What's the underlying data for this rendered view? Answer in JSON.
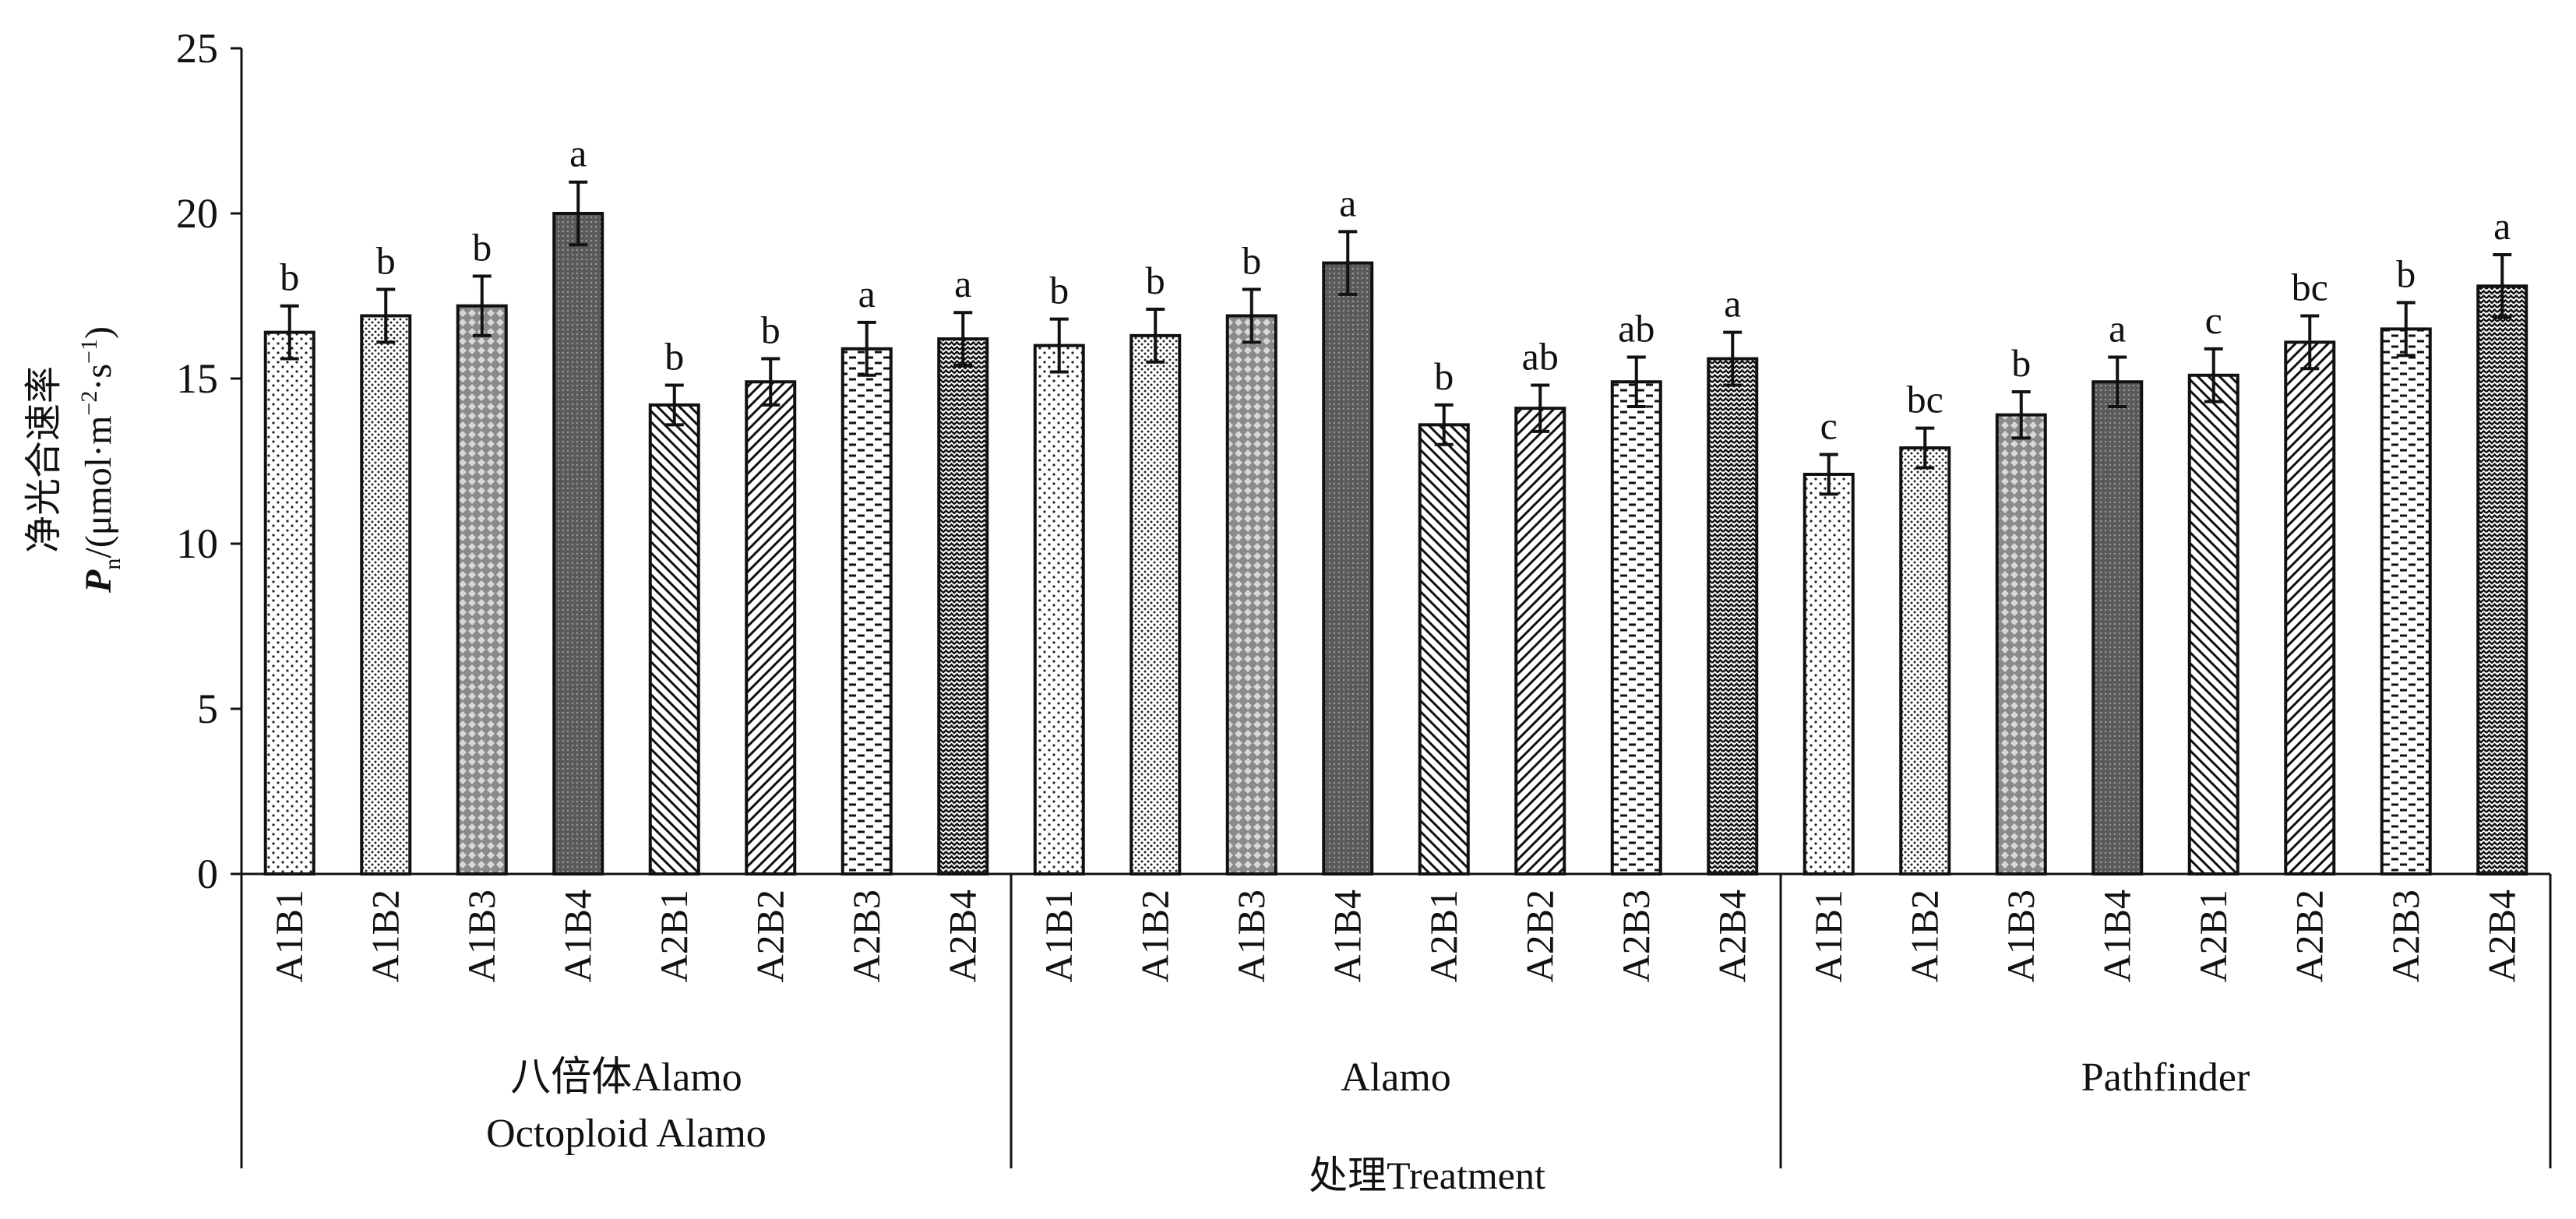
{
  "chart_data": {
    "type": "bar",
    "ylabel_cn": "净光合速率",
    "ylabel_en": "P",
    "ylabel_sub": "n",
    "ylabel_unit_pre": "/(μmol·m",
    "ylabel_exp1": "−2",
    "ylabel_unit_mid": "·s",
    "ylabel_exp2": "−1",
    "ylabel_unit_post": ")",
    "xlabel": "处理Treatment",
    "ylim": [
      0,
      25
    ],
    "yticks": [
      "0",
      "5",
      "10",
      "15",
      "20",
      "25"
    ],
    "groups": [
      {
        "label_line1": "八倍体Alamo",
        "label_line2": "Octoploid Alamo",
        "bars": [
          {
            "category": "A1B1",
            "value": 16.4,
            "error": 0.8,
            "letter": "b",
            "pattern": "dots-sparse"
          },
          {
            "category": "A1B2",
            "value": 16.9,
            "error": 0.8,
            "letter": "b",
            "pattern": "dots-dense"
          },
          {
            "category": "A1B3",
            "value": 17.2,
            "error": 0.9,
            "letter": "b",
            "pattern": "diamond"
          },
          {
            "category": "A1B4",
            "value": 20.0,
            "error": 0.95,
            "letter": "a",
            "pattern": "dark"
          },
          {
            "category": "A2B1",
            "value": 14.2,
            "error": 0.6,
            "letter": "b",
            "pattern": "diag-down"
          },
          {
            "category": "A2B2",
            "value": 14.9,
            "error": 0.7,
            "letter": "b",
            "pattern": "diag-up"
          },
          {
            "category": "A2B3",
            "value": 15.9,
            "error": 0.8,
            "letter": "a",
            "pattern": "dashes"
          },
          {
            "category": "A2B4",
            "value": 16.2,
            "error": 0.8,
            "letter": "a",
            "pattern": "zigzag"
          }
        ]
      },
      {
        "label_line1": "Alamo",
        "label_line2": "",
        "bars": [
          {
            "category": "A1B1",
            "value": 16.0,
            "error": 0.8,
            "letter": "b",
            "pattern": "dots-sparse"
          },
          {
            "category": "A1B2",
            "value": 16.3,
            "error": 0.8,
            "letter": "b",
            "pattern": "dots-dense"
          },
          {
            "category": "A1B3",
            "value": 16.9,
            "error": 0.8,
            "letter": "b",
            "pattern": "diamond"
          },
          {
            "category": "A1B4",
            "value": 18.5,
            "error": 0.95,
            "letter": "a",
            "pattern": "dark"
          },
          {
            "category": "A2B1",
            "value": 13.6,
            "error": 0.6,
            "letter": "b",
            "pattern": "diag-down"
          },
          {
            "category": "A2B2",
            "value": 14.1,
            "error": 0.7,
            "letter": "ab",
            "pattern": "diag-up"
          },
          {
            "category": "A2B3",
            "value": 14.9,
            "error": 0.75,
            "letter": "ab",
            "pattern": "dashes"
          },
          {
            "category": "A2B4",
            "value": 15.6,
            "error": 0.8,
            "letter": "a",
            "pattern": "zigzag"
          }
        ]
      },
      {
        "label_line1": "Pathfinder",
        "label_line2": "",
        "bars": [
          {
            "category": "A1B1",
            "value": 12.1,
            "error": 0.6,
            "letter": "c",
            "pattern": "dots-sparse"
          },
          {
            "category": "A1B2",
            "value": 12.9,
            "error": 0.6,
            "letter": "bc",
            "pattern": "dots-dense"
          },
          {
            "category": "A1B3",
            "value": 13.9,
            "error": 0.7,
            "letter": "b",
            "pattern": "diamond"
          },
          {
            "category": "A1B4",
            "value": 14.9,
            "error": 0.75,
            "letter": "a",
            "pattern": "dark"
          },
          {
            "category": "A2B1",
            "value": 15.1,
            "error": 0.8,
            "letter": "c",
            "pattern": "diag-down"
          },
          {
            "category": "A2B2",
            "value": 16.1,
            "error": 0.8,
            "letter": "bc",
            "pattern": "diag-up"
          },
          {
            "category": "A2B3",
            "value": 16.5,
            "error": 0.8,
            "letter": "b",
            "pattern": "dashes"
          },
          {
            "category": "A2B4",
            "value": 17.8,
            "error": 0.95,
            "letter": "a",
            "pattern": "zigzag"
          }
        ]
      }
    ],
    "grid": false,
    "legend": "none"
  }
}
